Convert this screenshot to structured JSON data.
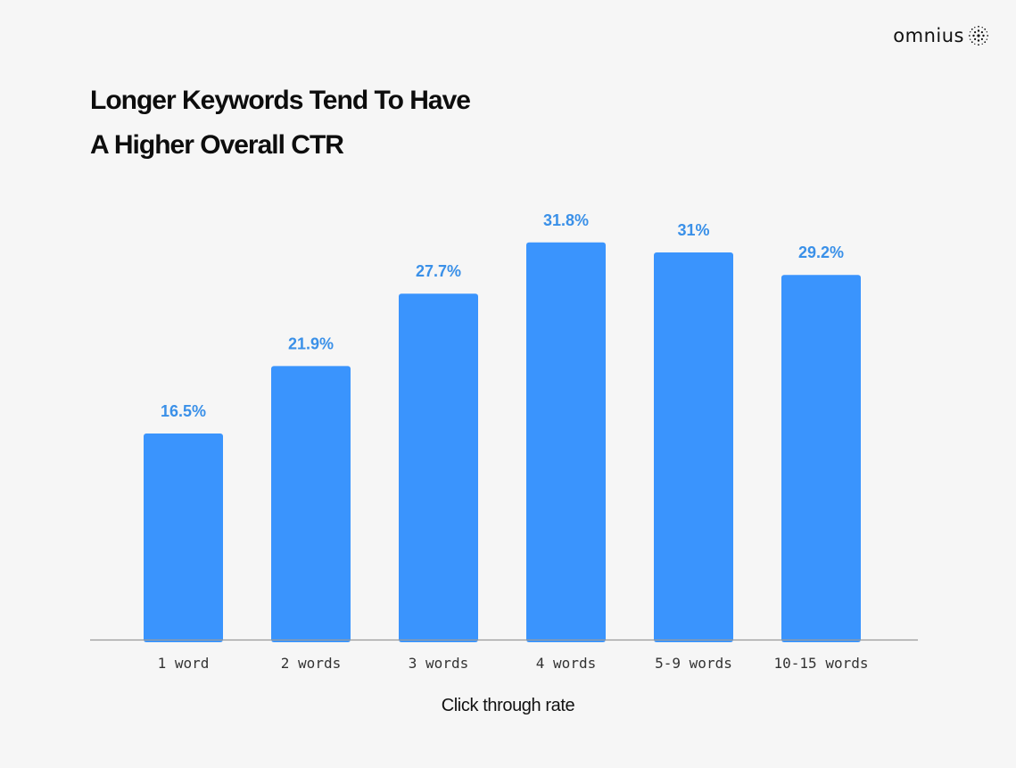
{
  "brand": {
    "name": "omnius",
    "icon": "dotted-sphere-icon"
  },
  "colors": {
    "bar": "#3a94fd",
    "value_label": "#3a90e8",
    "axis": "#9a9a9a",
    "tick_label": "#333333",
    "text": "#111111"
  },
  "chart_data": {
    "type": "bar",
    "title_lines": [
      "Longer Keywords Tend To Have",
      "A Higher Overall CTR"
    ],
    "xlabel": "Click through rate",
    "ylabel": "",
    "categories": [
      "1 word",
      "2 words",
      "3 words",
      "4 words",
      "5-9 words",
      "10-15 words"
    ],
    "values": [
      16.5,
      21.9,
      27.7,
      31.8,
      31,
      29.2
    ],
    "value_labels": [
      "16.5%",
      "21.9%",
      "27.7%",
      "31.8%",
      "31%",
      "29.2%"
    ],
    "ylim": [
      0,
      40
    ],
    "grid": false,
    "legend": "none"
  }
}
